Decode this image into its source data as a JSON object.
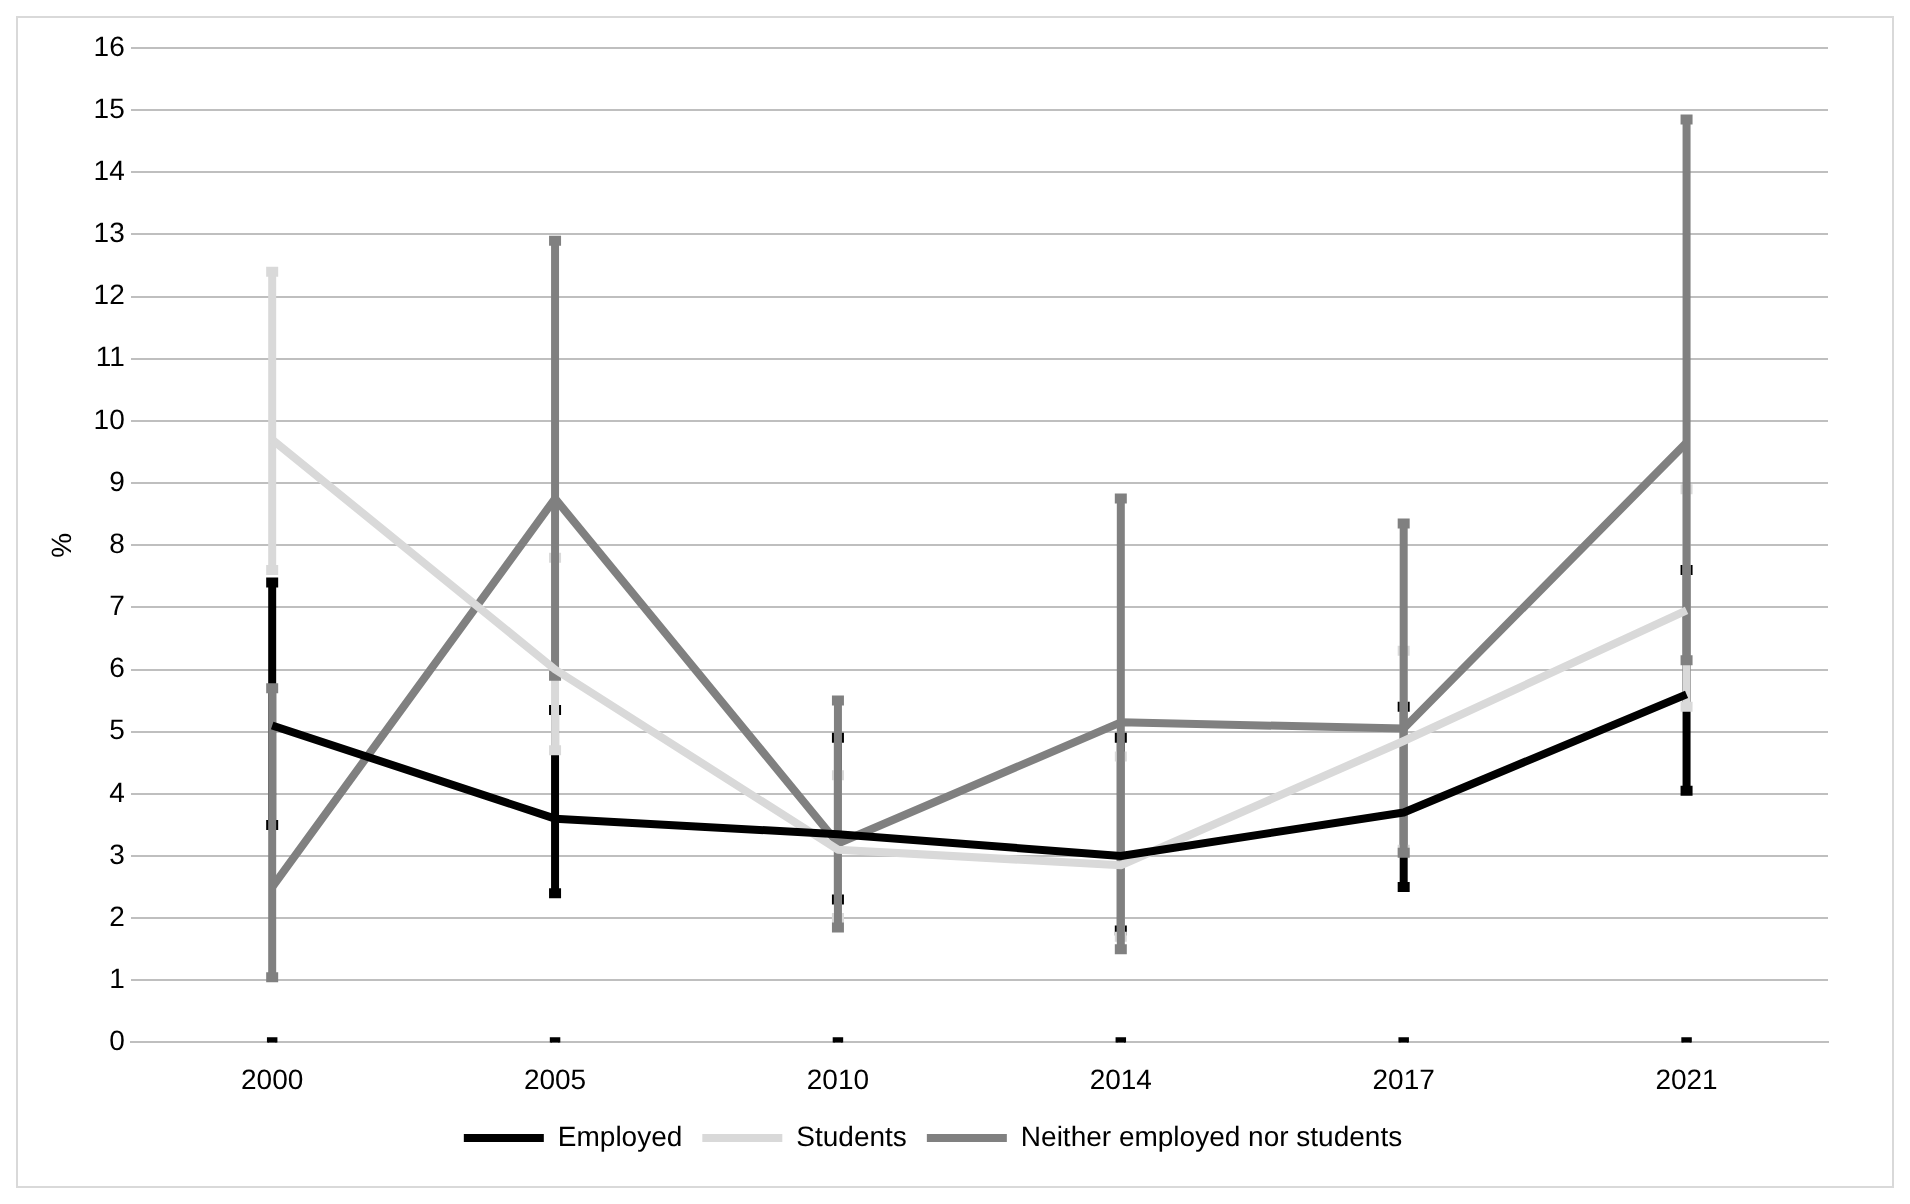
{
  "chart_data": {
    "type": "line",
    "ylabel": "%",
    "categories": [
      "2000",
      "2005",
      "2010",
      "2014",
      "2017",
      "2021"
    ],
    "series": [
      {
        "name": "Employed",
        "color": "#000000",
        "values": [
          5.1,
          3.6,
          3.35,
          3.0,
          3.7,
          5.6
        ],
        "errors": [
          [
            3.5,
            7.4
          ],
          [
            2.4,
            5.35
          ],
          [
            2.3,
            4.9
          ],
          [
            1.8,
            4.9
          ],
          [
            2.5,
            5.4
          ],
          [
            4.05,
            7.6
          ]
        ]
      },
      {
        "name": "Students",
        "color": "#d9d9d9",
        "values": [
          9.7,
          6.0,
          3.1,
          2.85,
          4.85,
          6.95
        ],
        "errors": [
          [
            7.6,
            12.4
          ],
          [
            4.7,
            7.8
          ],
          [
            2.0,
            4.3
          ],
          [
            1.7,
            4.6
          ],
          [
            3.1,
            6.3
          ],
          [
            5.4,
            8.9
          ]
        ]
      },
      {
        "name": "Neither employed nor students",
        "color": "#808080",
        "values": [
          2.5,
          8.75,
          3.2,
          5.15,
          5.05,
          9.65
        ],
        "errors": [
          [
            1.05,
            5.7
          ],
          [
            5.9,
            12.9
          ],
          [
            1.85,
            5.5
          ],
          [
            1.5,
            8.75
          ],
          [
            3.05,
            8.35
          ],
          [
            6.15,
            14.85
          ]
        ]
      },
      {
        "type": "scatter",
        "color": "#000000",
        "marker": "square",
        "values": [
          0,
          0,
          0,
          0,
          0,
          0
        ]
      }
    ],
    "ylim": [
      0,
      16
    ],
    "yticks": [
      0,
      1,
      2,
      3,
      4,
      5,
      6,
      7,
      8,
      9,
      10,
      11,
      12,
      13,
      14,
      15,
      16
    ],
    "grid": "y",
    "legend": "bottom",
    "marker": "none",
    "line_style": "solid"
  }
}
